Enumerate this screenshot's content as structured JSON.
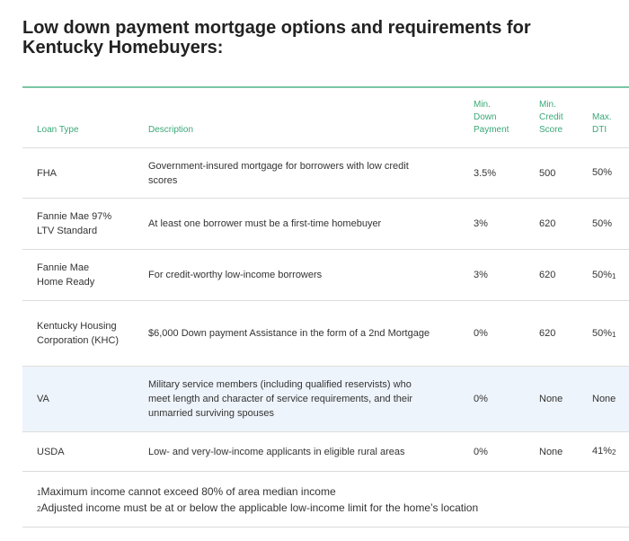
{
  "title": "Low down payment mortgage options and requirements for Kentucky Homebuyers:",
  "table": {
    "headers": {
      "loan_type": "Loan Type",
      "description": "Description",
      "min_down_payment": [
        "Min.",
        "Down",
        "Payment"
      ],
      "min_credit_score": [
        "Min.",
        "Credit",
        "Score"
      ],
      "max_dti": [
        "Max.",
        "DTI"
      ]
    },
    "rows": [
      {
        "loan_type": "FHA",
        "description": "Government-insured mortgage for borrowers with low credit scores",
        "down": "3.5%",
        "credit": "500",
        "dti": "50%",
        "dti_note": ""
      },
      {
        "loan_type": "Fannie Mae 97% LTV Standard",
        "description": "At least one borrower must be a first-time homebuyer",
        "down": "3%",
        "credit": "620",
        "dti": "50%",
        "dti_note": ""
      },
      {
        "loan_type": "Fannie Mae Home Ready",
        "description": "For credit-worthy low-income borrowers",
        "down": "3%",
        "credit": "620",
        "dti": "50%",
        "dti_note": "1"
      },
      {
        "loan_type": "Kentucky Housing Corporation (KHC)",
        "description": "$6,000 Down payment Assistance in the form of a 2nd Mortgage",
        "down": "0%",
        "credit": "620",
        "dti": "50%",
        "dti_note": "1"
      },
      {
        "loan_type": "VA",
        "description": "Military service members (including qualified reservists) who meet length and character of service requirements, and their unmarried surviving spouses",
        "down": "0%",
        "credit": "None",
        "dti": "None",
        "dti_note": ""
      },
      {
        "loan_type": "USDA",
        "description": "Low- and very-low-income applicants in eligible rural areas",
        "down": "0%",
        "credit": "None",
        "dti": "41%",
        "dti_note": "2"
      }
    ]
  },
  "footnotes": [
    {
      "num": "1",
      "text": "Maximum income cannot exceed 80% of area median income"
    },
    {
      "num": "2",
      "text": "Adjusted income must be at or below the applicable low-income limit for the home’s location"
    }
  ]
}
